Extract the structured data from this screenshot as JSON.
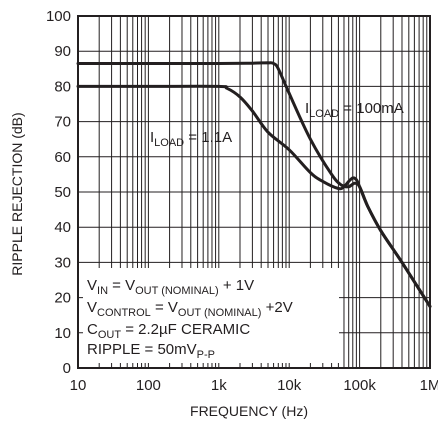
{
  "chart_data": {
    "type": "line",
    "xlabel": "FREQUENCY (Hz)",
    "ylabel": "RIPPLE REJECTION (dB)",
    "x_scale": "log",
    "xlim": [
      10,
      1000000
    ],
    "ylim": [
      0,
      100
    ],
    "x_ticks": [
      10,
      100,
      1000,
      10000,
      100000,
      1000000
    ],
    "x_tick_labels": [
      "10",
      "100",
      "1k",
      "10k",
      "100k",
      "1M"
    ],
    "y_ticks": [
      0,
      10,
      20,
      30,
      40,
      50,
      60,
      70,
      80,
      90,
      100
    ],
    "y_tick_labels": [
      "0",
      "10",
      "20",
      "30",
      "40",
      "50",
      "60",
      "70",
      "80",
      "90",
      "100"
    ],
    "grid": true,
    "series": [
      {
        "name": "I_LOAD = 100mA",
        "label_main": "I",
        "label_sub": "LOAD",
        "label_rest": " = 100mA",
        "color": "#231f20",
        "x": [
          10,
          100,
          1000,
          3000,
          5000,
          6000,
          7000,
          10000,
          20000,
          40000,
          55000,
          70000,
          85000,
          100000,
          130000,
          200000,
          400000,
          1000000
        ],
        "y": [
          86.5,
          86.5,
          86.5,
          86.6,
          86.7,
          86.5,
          85,
          78,
          65,
          55,
          52,
          51.5,
          52.5,
          51.5,
          46,
          39,
          30,
          17.5
        ]
      },
      {
        "name": "I_LOAD = 1.1A",
        "label_main": "I",
        "label_sub": "LOAD",
        "label_rest": " = 1.1A",
        "color": "#231f20",
        "x": [
          10,
          100,
          1000,
          1300,
          2000,
          3000,
          5000,
          10000,
          20000,
          30000,
          50000,
          60000,
          70000,
          80000,
          90000,
          100000,
          130000,
          200000,
          400000,
          1000000
        ],
        "y": [
          80,
          80,
          80,
          79.5,
          77,
          73,
          67,
          62,
          55.5,
          53,
          51,
          51.5,
          53,
          54,
          53.5,
          51.5,
          46,
          39,
          30,
          17.5
        ]
      }
    ],
    "annotations": [
      {
        "main": "V",
        "sub": "IN",
        "rest": " = V",
        "sub2": "OUT (NOMINAL)",
        "rest2": " + 1V"
      },
      {
        "main": "V",
        "sub": "CONTROL",
        "rest": " = V",
        "sub2": "OUT (NOMINAL)",
        "rest2": " +2V"
      },
      {
        "main": "C",
        "sub": "OUT",
        "rest": " = 2.2µF CERAMIC",
        "sub2": "",
        "rest2": ""
      },
      {
        "main": "RIPPLE = 50mV",
        "sub": "P-P",
        "rest": "",
        "sub2": "",
        "rest2": ""
      }
    ]
  }
}
